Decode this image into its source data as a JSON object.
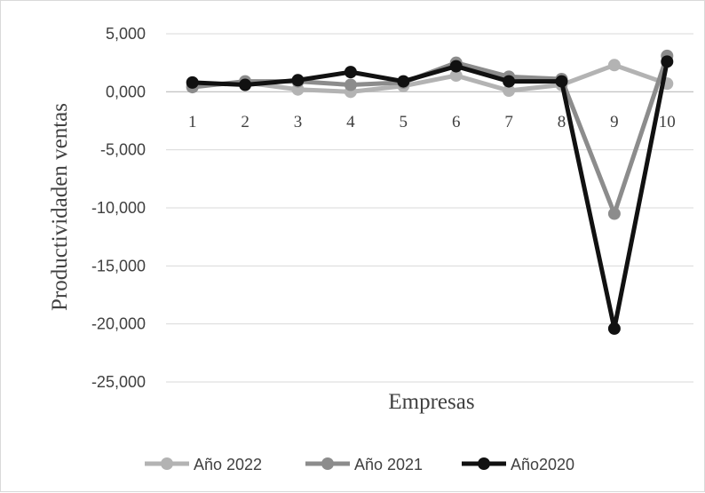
{
  "chart_data": {
    "type": "line",
    "title": "",
    "xlabel": "Empresas",
    "ylabel": "Productividaden ventas",
    "categories": [
      "1",
      "2",
      "3",
      "4",
      "5",
      "6",
      "7",
      "8",
      "9",
      "10"
    ],
    "yticks": [
      "5,000",
      "0,000",
      "-5,000",
      "-10,000",
      "-15,000",
      "-20,000",
      "-25,000"
    ],
    "ytick_values": [
      5,
      0,
      -5,
      -10,
      -15,
      -20,
      -25
    ],
    "ylim": [
      -25,
      5
    ],
    "grid": true,
    "legend_position": "bottom",
    "series": [
      {
        "name": "Año 2022",
        "color": "#b3b3b3",
        "values": [
          0.5,
          0.8,
          0.2,
          0.0,
          0.5,
          1.4,
          0.1,
          0.6,
          2.3,
          0.7
        ]
      },
      {
        "name": "Año 2021",
        "color": "#8c8c8c",
        "values": [
          0.4,
          0.9,
          0.9,
          0.6,
          0.8,
          2.5,
          1.3,
          1.1,
          -10.5,
          3.1
        ]
      },
      {
        "name": "Año2020",
        "color": "#111111",
        "values": [
          0.8,
          0.6,
          1.0,
          1.7,
          0.9,
          2.2,
          0.9,
          0.9,
          -20.4,
          2.6
        ]
      }
    ]
  }
}
